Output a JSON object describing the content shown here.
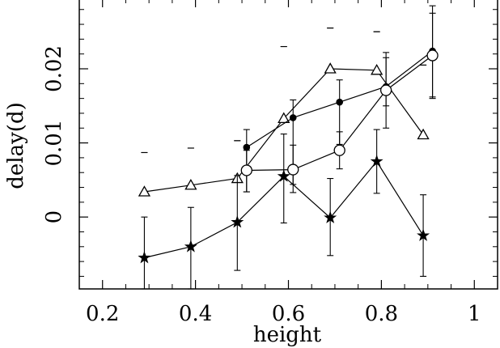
{
  "chart_data": {
    "type": "scatter",
    "title": "",
    "xlabel": "height",
    "ylabel": "delay(d)",
    "xlim": [
      0.15,
      1.05
    ],
    "ylim": [
      -0.0097,
      0.0295
    ],
    "xticks": [
      0.2,
      0.4,
      0.6,
      0.8,
      1
    ],
    "xtick_labels": [
      "0.2",
      "0.4",
      "0.6",
      "0.8",
      "1"
    ],
    "yticks": [
      0,
      0.01,
      0.02
    ],
    "ytick_labels": [
      "0",
      "0.01",
      "0.02"
    ],
    "grid": false,
    "legend": "none",
    "series": [
      {
        "marker": "open-triangle",
        "x": [
          0.29,
          0.39,
          0.49,
          0.59,
          0.69,
          0.79,
          0.89
        ],
        "y": [
          0.0034,
          0.0043,
          0.0052,
          0.0133,
          0.02,
          0.0198,
          0.0111
        ],
        "err_low": [
          0.0087,
          0.0093,
          0.0103,
          0.023,
          0.0255,
          0.025,
          0.0205
        ],
        "err_high": [
          0.0087,
          0.0093,
          0.0103,
          0.023,
          0.0255,
          0.025,
          0.0205
        ]
      },
      {
        "marker": "filled-circle",
        "x": [
          0.51,
          0.61,
          0.71,
          0.81,
          0.91
        ],
        "y": [
          0.0094,
          0.0134,
          0.0155,
          0.0176,
          0.0224
        ],
        "err_low": [
          0.0034,
          0.0044,
          0.0098,
          0.015,
          0.016
        ],
        "err_high": [
          0.0118,
          0.0158,
          0.0185,
          0.0215,
          0.0285
        ]
      },
      {
        "marker": "open-circle",
        "x": [
          0.51,
          0.61,
          0.71,
          0.81,
          0.91
        ],
        "y": [
          0.0063,
          0.0064,
          0.009,
          0.0171,
          0.0218
        ],
        "err_low": [
          0.0034,
          0.0033,
          0.0065,
          0.012,
          0.0162
        ],
        "err_high": [
          0.009,
          0.0097,
          0.0115,
          0.0222,
          0.0275
        ]
      },
      {
        "marker": "filled-star",
        "x": [
          0.29,
          0.39,
          0.49,
          0.59,
          0.69,
          0.79,
          0.89
        ],
        "y": [
          -0.0055,
          -0.004,
          -0.0007,
          0.0055,
          -0.0001,
          0.0075,
          -0.0025
        ],
        "err_low": [
          -0.0097,
          -0.0097,
          -0.0072,
          -0.0008,
          -0.0052,
          0.0032,
          -0.008
        ],
        "err_high": [
          0.0,
          0.0013,
          0.0056,
          0.0112,
          0.0052,
          0.0118,
          0.003
        ]
      }
    ]
  }
}
